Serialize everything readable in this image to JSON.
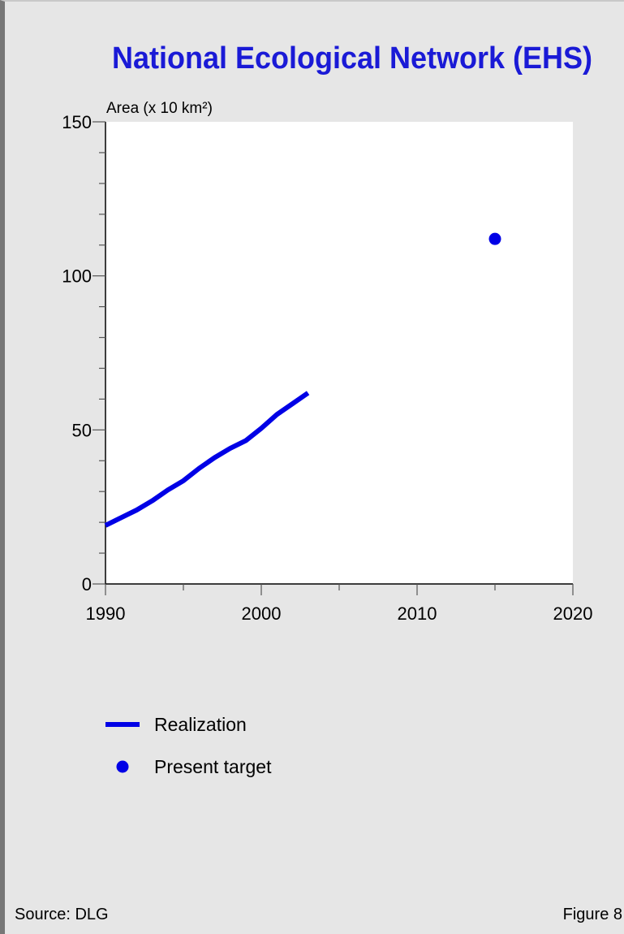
{
  "chart_data": {
    "type": "line",
    "title": "National Ecological Network (EHS)",
    "ylabel": "Area (x 10 km²)",
    "xlabel": "",
    "xlim": [
      1990,
      2020
    ],
    "ylim": [
      0,
      150
    ],
    "x_ticks": [
      1990,
      2000,
      2010,
      2020
    ],
    "y_ticks": [
      0,
      50,
      100,
      150
    ],
    "grid": false,
    "legend_position": "bottom-left",
    "series": [
      {
        "name": "Realization",
        "style": "line",
        "color": "#0000e6",
        "x": [
          1990,
          1991,
          1992,
          1993,
          1994,
          1995,
          1996,
          1997,
          1998,
          1999,
          2000,
          2001,
          2002,
          2003
        ],
        "y": [
          19,
          21.5,
          24,
          27,
          30.5,
          33.5,
          37.5,
          41,
          44,
          46.5,
          50.5,
          55,
          58.5,
          62
        ]
      },
      {
        "name": "Present target",
        "style": "point",
        "color": "#0000e6",
        "x": [
          2015
        ],
        "y": [
          112
        ]
      }
    ]
  },
  "footer": {
    "source": "Source: DLG",
    "figure": "Figure 8"
  }
}
